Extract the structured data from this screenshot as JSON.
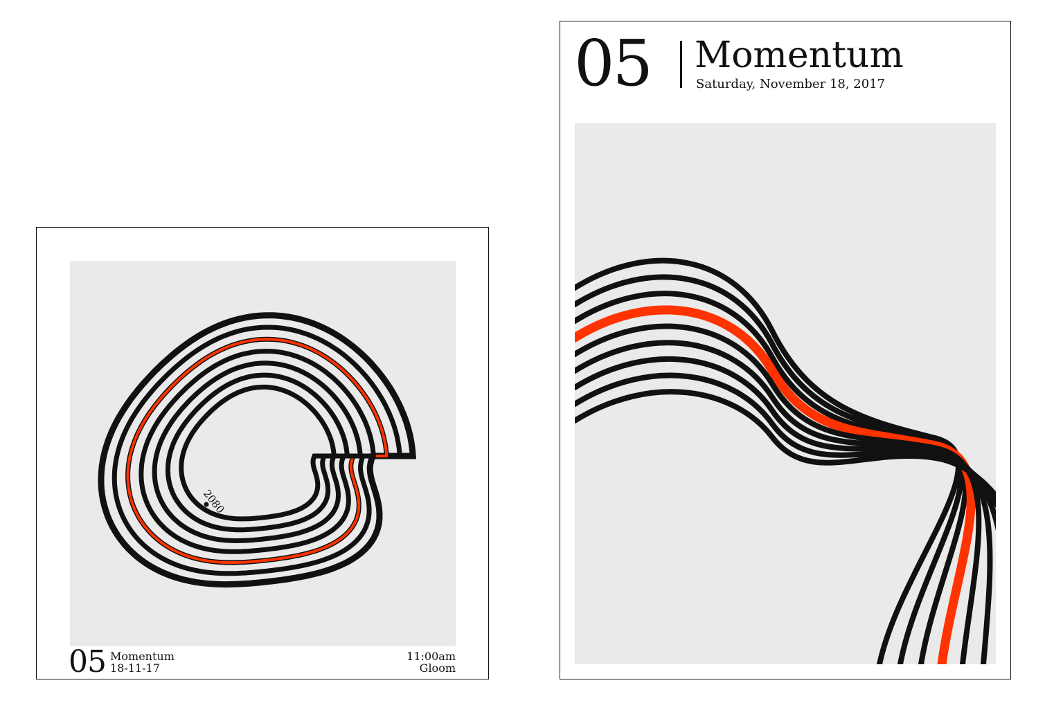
{
  "colors": {
    "accent": "#ff3300",
    "ink": "#111111",
    "panel": "#eaeaea",
    "paper": "#ffffff"
  },
  "poster_square": {
    "number": "05",
    "title": "Momentum",
    "date": "18-11-17",
    "time": "11:00am",
    "mood": "Gloom",
    "marker_label": "2080"
  },
  "poster_tall": {
    "number": "05",
    "title": "Momentum",
    "date": "Saturday, November 18, 2017"
  }
}
